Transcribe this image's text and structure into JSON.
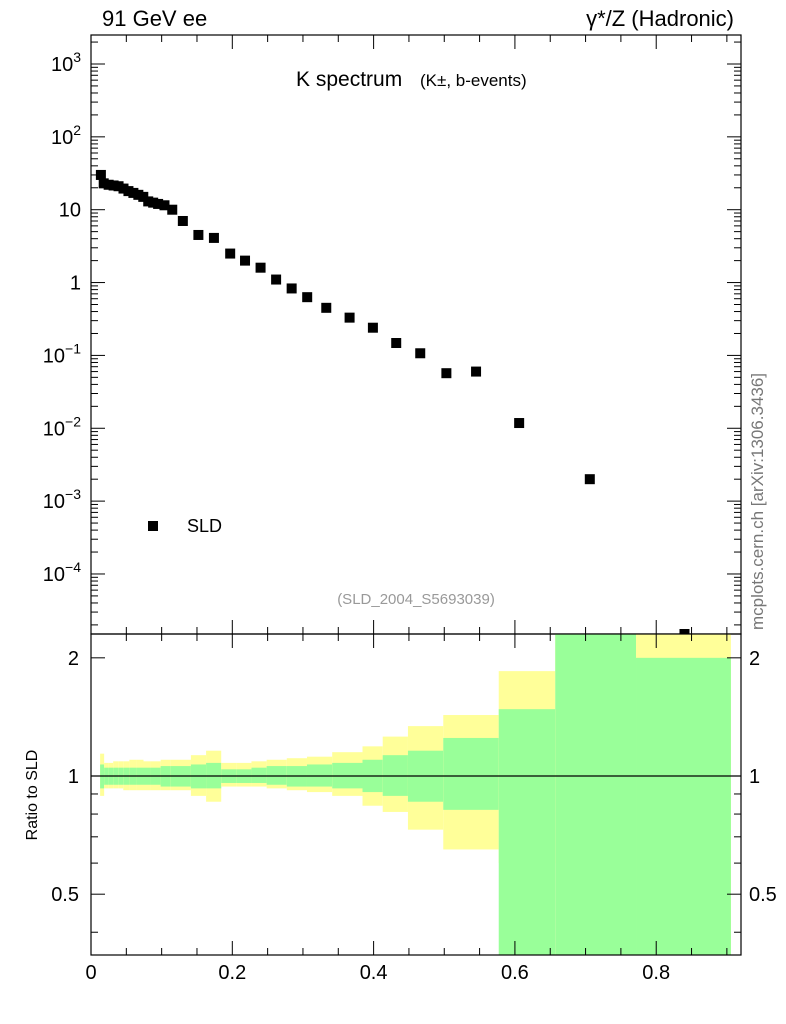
{
  "header": {
    "left": "91 GeV ee",
    "right": "γ*/Z (Hadronic)"
  },
  "side_credit": "mcplots.cern.ch [arXiv:1306.3436]",
  "colors": {
    "marker": "#000000",
    "band_inner": "#99ff99",
    "band_outer": "#ffff99",
    "watermark": "#999999"
  },
  "chart_data": [
    {
      "type": "scatter",
      "panel": "main",
      "title_main": "K spectrum",
      "title_sub": "(K±, b-events)",
      "watermark": "(SLD_2004_S5693039)",
      "legend": {
        "label": "SLD",
        "placement": "lower-left"
      },
      "yscale": "log",
      "xlim": [
        0,
        0.92
      ],
      "ylim": [
        1.5e-05,
        2500
      ],
      "yticks": [
        {
          "value": 1000,
          "base": "10",
          "exp": "3"
        },
        {
          "value": 100,
          "base": "10",
          "exp": "2"
        },
        {
          "value": 10,
          "base": "10",
          "exp": ""
        },
        {
          "value": 1,
          "base": "1",
          "exp": ""
        },
        {
          "value": 0.1,
          "base": "10",
          "exp": "−1"
        },
        {
          "value": 0.01,
          "base": "10",
          "exp": "−2"
        },
        {
          "value": 0.001,
          "base": "10",
          "exp": "−3"
        },
        {
          "value": 0.0001,
          "base": "10",
          "exp": "−4"
        }
      ],
      "series": [
        {
          "name": "SLD",
          "x": [
            0.014,
            0.018,
            0.025,
            0.032,
            0.039,
            0.046,
            0.053,
            0.06,
            0.067,
            0.074,
            0.081,
            0.088,
            0.095,
            0.104,
            0.115,
            0.13,
            0.152,
            0.174,
            0.197,
            0.218,
            0.24,
            0.262,
            0.284,
            0.306,
            0.333,
            0.366,
            0.399,
            0.432,
            0.466,
            0.503,
            0.545,
            0.606,
            0.706,
            0.84
          ],
          "y": [
            30,
            23,
            22,
            21.5,
            21,
            19.5,
            18,
            17,
            16,
            15,
            13,
            12.5,
            12,
            11.5,
            10,
            7,
            4.5,
            4.1,
            2.5,
            2.0,
            1.6,
            1.1,
            0.83,
            0.63,
            0.45,
            0.33,
            0.24,
            0.148,
            0.107,
            0.057,
            0.06,
            0.0118,
            0.002,
            1.5e-05
          ]
        }
      ]
    },
    {
      "type": "area",
      "panel": "ratio",
      "ylabel": "Ratio to SLD",
      "xlim": [
        0,
        0.92
      ],
      "ylim": [
        0.35,
        2.3
      ],
      "xticks": [
        "0",
        "0.2",
        "0.4",
        "0.6",
        "0.8"
      ],
      "yticks": [
        "0.5",
        "1",
        "2"
      ],
      "reference_line": 1,
      "bins": [
        0.0129,
        0.0186,
        0.0243,
        0.0314,
        0.0386,
        0.0457,
        0.0543,
        0.0643,
        0.0743,
        0.0843,
        0.0986,
        0.1129,
        0.1414,
        0.1629,
        0.1843,
        0.2057,
        0.2271,
        0.2486,
        0.2771,
        0.3057,
        0.3414,
        0.3843,
        0.4129,
        0.4486,
        0.4986,
        0.5771,
        0.6571,
        0.7714,
        0.9057
      ],
      "inner_lo": [
        0.93,
        0.95,
        0.95,
        0.95,
        0.95,
        0.95,
        0.95,
        0.95,
        0.95,
        0.95,
        0.94,
        0.94,
        0.93,
        0.93,
        0.96,
        0.96,
        0.96,
        0.95,
        0.94,
        0.94,
        0.93,
        0.91,
        0.89,
        0.86,
        0.82,
        0.35,
        0.35,
        0.35
      ],
      "inner_hi": [
        1.07,
        1.05,
        1.05,
        1.05,
        1.05,
        1.05,
        1.05,
        1.05,
        1.05,
        1.05,
        1.06,
        1.06,
        1.07,
        1.08,
        1.04,
        1.04,
        1.05,
        1.06,
        1.06,
        1.07,
        1.08,
        1.1,
        1.13,
        1.16,
        1.25,
        1.48,
        2.3,
        2.0
      ],
      "outer_lo": [
        0.89,
        0.93,
        0.93,
        0.93,
        0.93,
        0.92,
        0.92,
        0.92,
        0.92,
        0.92,
        0.92,
        0.92,
        0.89,
        0.86,
        0.94,
        0.94,
        0.94,
        0.93,
        0.92,
        0.91,
        0.89,
        0.84,
        0.81,
        0.73,
        0.65,
        0.6,
        0.35,
        0.35
      ],
      "outer_hi": [
        1.14,
        1.08,
        1.08,
        1.09,
        1.09,
        1.09,
        1.1,
        1.1,
        1.09,
        1.09,
        1.1,
        1.1,
        1.13,
        1.16,
        1.08,
        1.08,
        1.09,
        1.1,
        1.11,
        1.12,
        1.15,
        1.19,
        1.26,
        1.34,
        1.43,
        1.85,
        2.3,
        2.3
      ]
    }
  ]
}
